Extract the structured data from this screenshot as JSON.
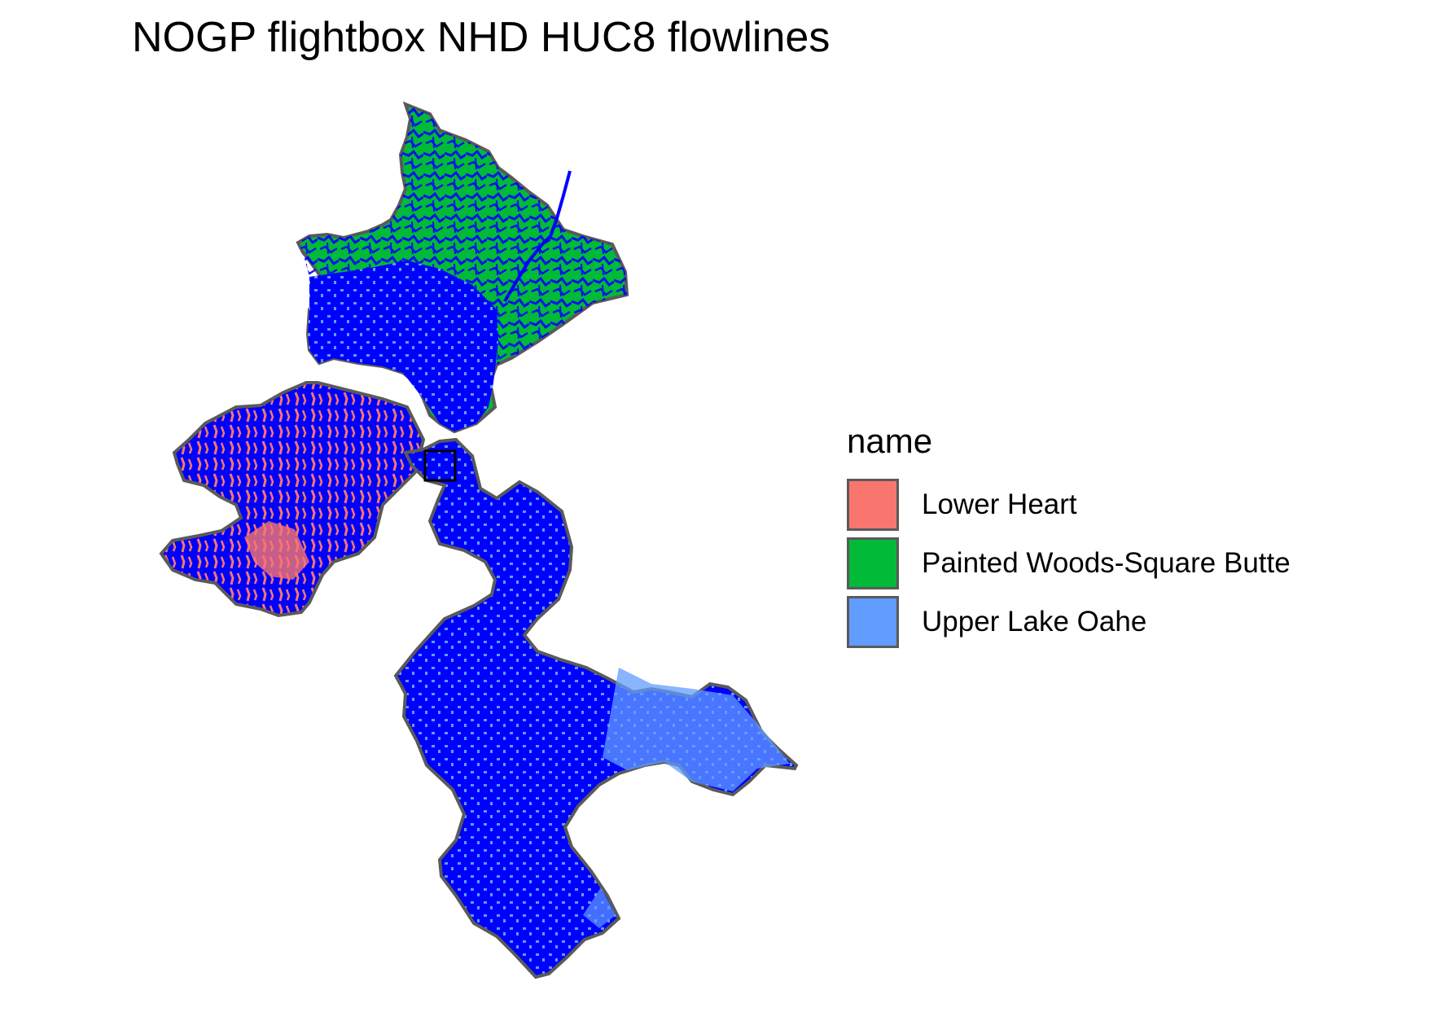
{
  "title": "NOGP flightbox NHD HUC8 flowlines",
  "legend": {
    "title": "name",
    "items": [
      {
        "label": "Lower Heart",
        "color": "#F8766D"
      },
      {
        "label": "Painted Woods-Square Butte",
        "color": "#00BA38"
      },
      {
        "label": "Upper Lake Oahe",
        "color": "#619CFF"
      }
    ]
  },
  "colors": {
    "flowlines": "#0000FF",
    "boundary": "#5a5a5a",
    "flightbox": "#000000"
  },
  "chart_data": {
    "type": "map",
    "title": "NOGP flightbox NHD HUC8 flowlines",
    "legend_title": "name",
    "legend_placement": "right",
    "regions": [
      "Lower Heart",
      "Painted Woods-Square Butte",
      "Upper Lake Oahe"
    ],
    "layers": [
      "HUC8 polygons",
      "NHD flowlines",
      "flightbox"
    ],
    "grid": false
  }
}
